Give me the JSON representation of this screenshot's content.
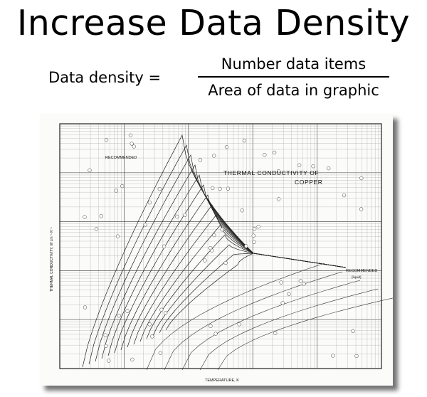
{
  "slide": {
    "title": "Increase Data Density",
    "formula_lhs": "Data density =",
    "formula_numerator": "Number data items",
    "formula_denominator": "Area of data in graphic"
  },
  "chart": {
    "title_line1": "THERMAL CONDUCTIVITY OF",
    "title_line2": "COPPER",
    "xlabel": "TEMPERATURE, K",
    "ylabel": "THERMAL CONDUCTIVITY, W cm⁻¹ K⁻¹",
    "annotation_recommended_left": "RECOMMENDED",
    "annotation_recommended_right": "RECOMMENDED",
    "annotation_liquid": "(liquid)"
  }
}
